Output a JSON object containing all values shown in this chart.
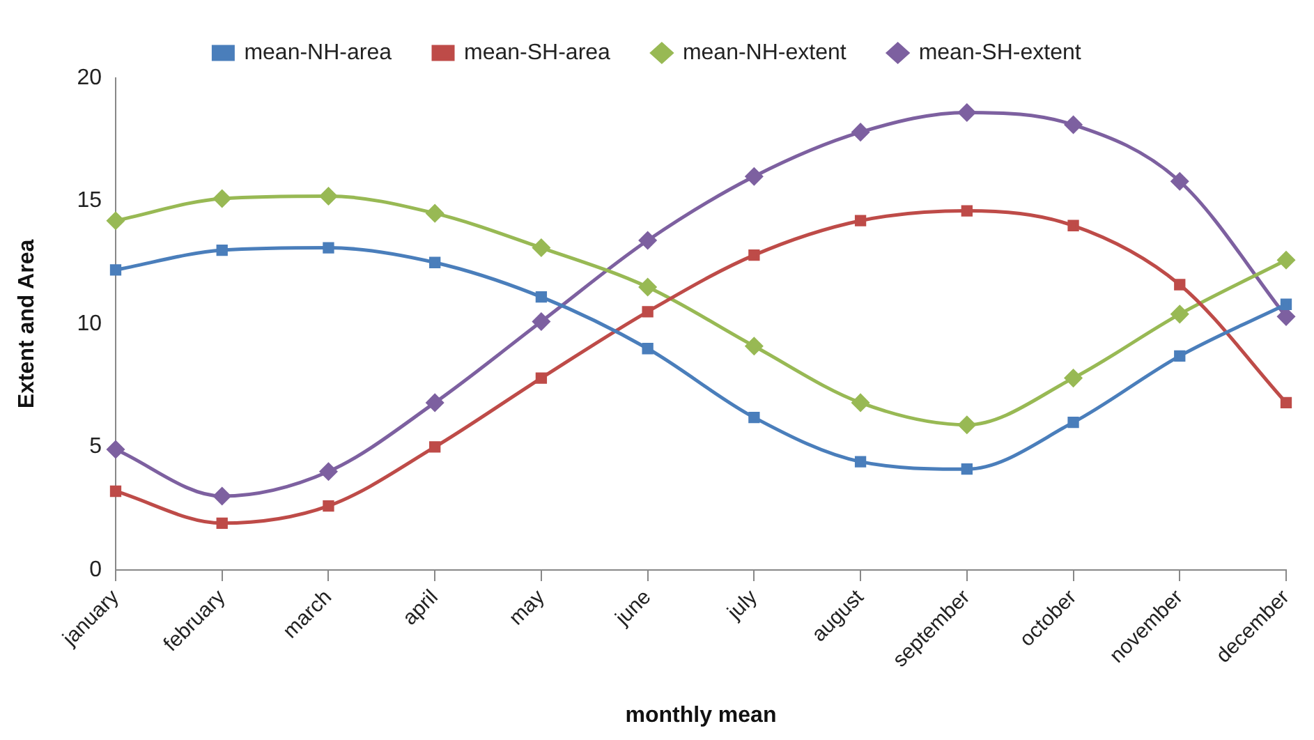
{
  "chart_data": {
    "type": "line",
    "xlabel": "monthly mean",
    "ylabel": "Extent and Area",
    "categories": [
      "january",
      "february",
      "march",
      "april",
      "may",
      "june",
      "july",
      "august",
      "september",
      "october",
      "november",
      "december"
    ],
    "series": [
      {
        "name": "mean-NH-area",
        "color": "#4a7ebb",
        "marker": "square",
        "values": [
          12.2,
          13.0,
          13.1,
          12.5,
          11.1,
          9.0,
          6.2,
          4.4,
          4.1,
          6.0,
          8.7,
          10.8
        ]
      },
      {
        "name": "mean-SH-area",
        "color": "#be4b48",
        "marker": "square",
        "values": [
          3.2,
          1.9,
          2.6,
          5.0,
          7.8,
          10.5,
          12.8,
          14.2,
          14.6,
          14.0,
          11.6,
          6.8
        ]
      },
      {
        "name": "mean-NH-extent",
        "color": "#98b954",
        "marker": "diamond",
        "values": [
          14.2,
          15.1,
          15.2,
          14.5,
          13.1,
          11.5,
          9.1,
          6.8,
          5.9,
          7.8,
          10.4,
          12.6
        ]
      },
      {
        "name": "mean-SH-extent",
        "color": "#7d60a0",
        "marker": "diamond",
        "values": [
          4.9,
          3.0,
          4.0,
          6.8,
          10.1,
          13.4,
          16.0,
          17.8,
          18.6,
          18.1,
          15.8,
          10.3
        ]
      }
    ],
    "ylim": [
      0,
      20
    ],
    "yticks": [
      0,
      5,
      10,
      15,
      20
    ],
    "grid": false,
    "legend": "top",
    "line_style": "solid"
  }
}
